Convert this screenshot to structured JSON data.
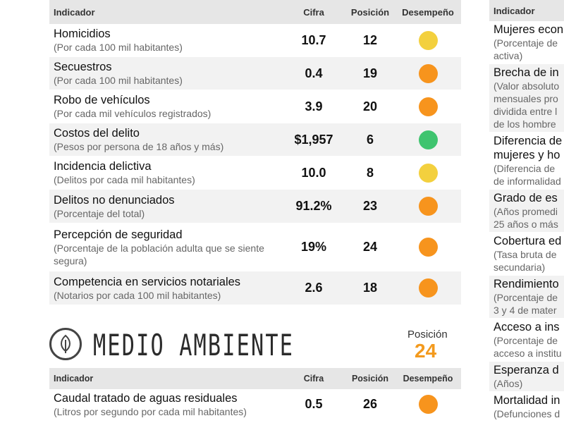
{
  "headers": {
    "indicador": "Indicador",
    "cifra": "Cifra",
    "posicion": "Posición",
    "desempeno": "Desempeño"
  },
  "colors": {
    "yellow": "#f3d03e",
    "orange": "#f7941d",
    "green": "#3fc46f"
  },
  "security_rows": [
    {
      "name": "Homicidios",
      "sub": "(Por cada 100 mil habitantes)",
      "cifra": "10.7",
      "posicion": "12",
      "rating": "yellow"
    },
    {
      "name": "Secuestros",
      "sub": "(Por cada 100 mil habitantes)",
      "cifra": "0.4",
      "posicion": "19",
      "rating": "orange"
    },
    {
      "name": "Robo de vehículos",
      "sub": "(Por cada mil vehículos registrados)",
      "cifra": "3.9",
      "posicion": "20",
      "rating": "orange"
    },
    {
      "name": "Costos del delito",
      "sub": "(Pesos por persona de 18 años y más)",
      "cifra": "$1,957",
      "posicion": "6",
      "rating": "green"
    },
    {
      "name": "Incidencia delictiva",
      "sub": "(Delitos por cada mil habitantes)",
      "cifra": "10.0",
      "posicion": "8",
      "rating": "yellow"
    },
    {
      "name": "Delitos no denunciados",
      "sub": "(Porcentaje del total)",
      "cifra": "91.2%",
      "posicion": "23",
      "rating": "orange"
    },
    {
      "name": "Percepción de seguridad",
      "sub": "(Porcentaje de la población adulta que se siente segura)",
      "cifra": "19%",
      "posicion": "24",
      "rating": "orange"
    },
    {
      "name": "Competencia en servicios notariales",
      "sub": "(Notarios por cada 100 mil habitantes)",
      "cifra": "2.6",
      "posicion": "18",
      "rating": "orange"
    }
  ],
  "environment": {
    "title": "MEDIO AMBIENTE",
    "position_label": "Posición",
    "position_value": "24",
    "rows": [
      {
        "name": "Caudal tratado de aguas residuales",
        "sub": "(Litros por segundo por cada mil habitantes)",
        "cifra": "0.5",
        "posicion": "26",
        "rating": "orange"
      }
    ]
  },
  "right_rows": [
    {
      "lines": [
        "Mujeres econ",
        "(Porcentaje de",
        "activa)"
      ]
    },
    {
      "lines": [
        "Brecha de in",
        "(Valor absoluto",
        "mensuales pro",
        "dividida entre l",
        "de los hombre"
      ]
    },
    {
      "lines": [
        "Diferencia de",
        "mujeres y ho",
        "(Diferencia de",
        "de informalidad"
      ]
    },
    {
      "lines": [
        "Grado de es",
        "(Años promedi",
        "25 años o más"
      ]
    },
    {
      "lines": [
        "Cobertura ed",
        "(Tasa bruta de",
        "secundaria)"
      ]
    },
    {
      "lines": [
        "Rendimiento",
        "(Porcentaje de",
        "3 y 4 de mater"
      ]
    },
    {
      "lines": [
        "Acceso a ins",
        "(Porcentaje de",
        "acceso a institu"
      ]
    },
    {
      "lines": [
        "Esperanza d",
        "(Años)"
      ]
    },
    {
      "lines": [
        "Mortalidad in",
        "(Defunciones d"
      ]
    }
  ]
}
